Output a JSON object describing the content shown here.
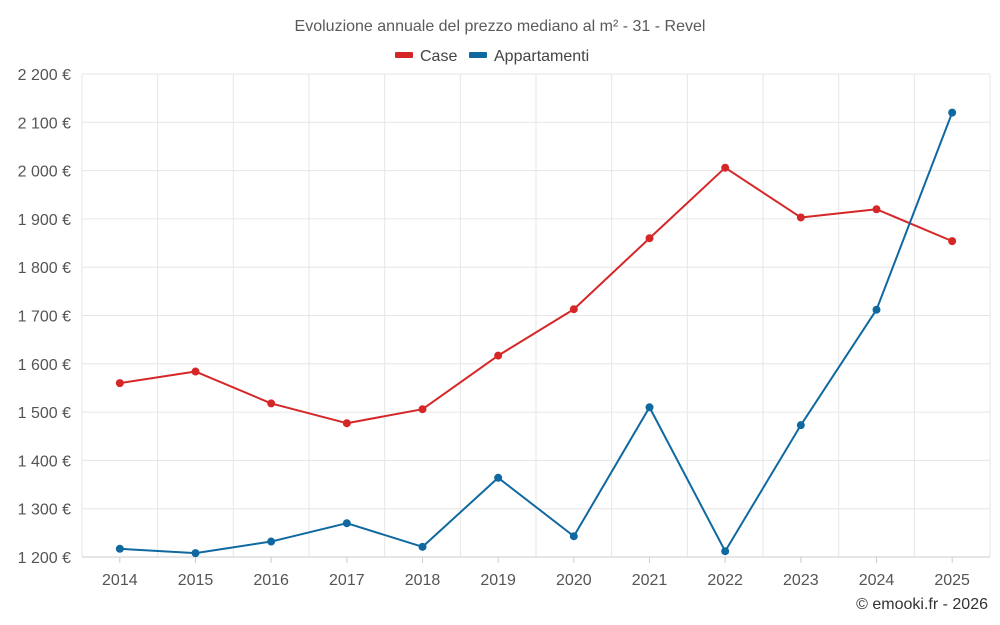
{
  "chart_data": {
    "type": "line",
    "title": "Evoluzione annuale del prezzo mediano al m² - 31 - Revel",
    "categories": [
      "2014",
      "2015",
      "2016",
      "2017",
      "2018",
      "2019",
      "2020",
      "2021",
      "2022",
      "2023",
      "2024",
      "2025"
    ],
    "series": [
      {
        "name": "Case",
        "color": "#d62728",
        "values": [
          1560,
          1584,
          1518,
          1477,
          1506,
          1617,
          1713,
          1860,
          2006,
          1903,
          1920,
          1854
        ]
      },
      {
        "name": "Appartamenti",
        "color": "#0f69a0",
        "values": [
          1217,
          1208,
          1232,
          1270,
          1221,
          1364,
          1243,
          1510,
          1212,
          1473,
          1712,
          2120
        ]
      }
    ],
    "ylim": [
      1200,
      2200
    ],
    "yticks": [
      1200,
      1300,
      1400,
      1500,
      1600,
      1700,
      1800,
      1900,
      2000,
      2100,
      2200
    ],
    "ytick_labels": [
      "1 200 €",
      "1 300 €",
      "1 400 €",
      "1 500 €",
      "1 600 €",
      "1 700 €",
      "1 800 €",
      "1 900 €",
      "2 000 €",
      "2 100 €",
      "2 200 €"
    ],
    "xlabel": "",
    "ylabel": "",
    "legend_position": "top-center",
    "grid": true
  },
  "credit": "© emooki.fr - 2026"
}
